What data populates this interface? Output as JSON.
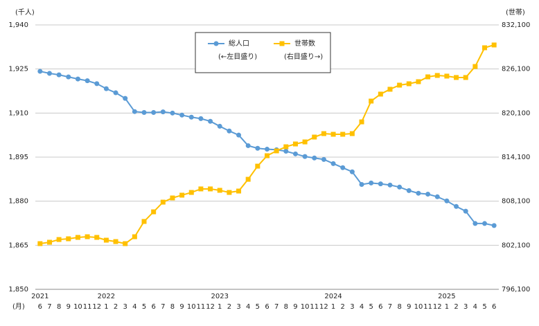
{
  "chart_data": {
    "type": "line",
    "y_unit": "(千人)",
    "y2_unit": "(世帯)",
    "x_unit": "(月)",
    "categories": [
      "6",
      "7",
      "8",
      "9",
      "10",
      "11",
      "12",
      "1",
      "2",
      "3",
      "4",
      "5",
      "6",
      "7",
      "8",
      "9",
      "10",
      "11",
      "12",
      "1",
      "2",
      "3",
      "4",
      "5",
      "6",
      "7",
      "8",
      "9",
      "10",
      "11",
      "12",
      "1",
      "2",
      "3",
      "4",
      "5",
      "6",
      "7",
      "8",
      "9",
      "10",
      "11",
      "12",
      "1",
      "2",
      "3",
      "4",
      "5",
      "6"
    ],
    "year_labels": [
      "2021",
      "2022",
      "2023",
      "2024",
      "2025"
    ],
    "ylim": [
      1850,
      1940
    ],
    "yticks": [
      {
        "value": 1850,
        "label": "1,850"
      },
      {
        "value": 1865,
        "label": "1,865"
      },
      {
        "value": 1880,
        "label": "1,880"
      },
      {
        "value": 1895,
        "label": "1,895"
      },
      {
        "value": 1910,
        "label": "1,910"
      },
      {
        "value": 1925,
        "label": "1,925"
      },
      {
        "value": 1940,
        "label": "1,940"
      }
    ],
    "y2lim": [
      796100,
      832100
    ],
    "y2ticks": [
      {
        "value": 796100,
        "label": "796,100"
      },
      {
        "value": 802100,
        "label": "802,100"
      },
      {
        "value": 808100,
        "label": "808,100"
      },
      {
        "value": 814100,
        "label": "814,100"
      },
      {
        "value": 820100,
        "label": "820,100"
      },
      {
        "value": 826100,
        "label": "826,100"
      },
      {
        "value": 832100,
        "label": "832,100"
      }
    ],
    "grid": true,
    "series": [
      {
        "name": "総人口",
        "note": "(←左目盛り)",
        "color": "#5b9bd5",
        "marker": "circle",
        "axis": "y",
        "values": [
          1924.2,
          1923.5,
          1923.0,
          1922.3,
          1921.6,
          1921.0,
          1920.0,
          1918.3,
          1916.9,
          1915.0,
          1910.5,
          1910.2,
          1910.2,
          1910.4,
          1910.0,
          1909.3,
          1908.6,
          1908.1,
          1907.2,
          1905.5,
          1903.9,
          1902.5,
          1898.9,
          1898.0,
          1897.7,
          1897.5,
          1897.0,
          1896.1,
          1895.2,
          1894.7,
          1894.2,
          1892.8,
          1891.4,
          1890.0,
          1885.7,
          1886.2,
          1885.9,
          1885.5,
          1884.8,
          1883.6,
          1882.7,
          1882.4,
          1881.5,
          1880.1,
          1878.2,
          1876.6,
          1872.4,
          1872.4,
          1871.7
        ]
      },
      {
        "name": "世帯数",
        "note": "(右目盛り→)",
        "color": "#ffc000",
        "marker": "square",
        "axis": "y2",
        "values": [
          802320,
          802510,
          802880,
          802980,
          803170,
          803260,
          803170,
          802790,
          802600,
          802320,
          803260,
          805340,
          806650,
          807970,
          808540,
          808920,
          809290,
          809770,
          809770,
          809580,
          809290,
          809480,
          811080,
          812870,
          814290,
          814950,
          815510,
          815890,
          816170,
          816830,
          817300,
          817210,
          817210,
          817300,
          818900,
          821730,
          822680,
          823340,
          823900,
          824090,
          824370,
          825030,
          825220,
          825130,
          824940,
          824940,
          826440,
          828990,
          829370
        ]
      }
    ]
  }
}
